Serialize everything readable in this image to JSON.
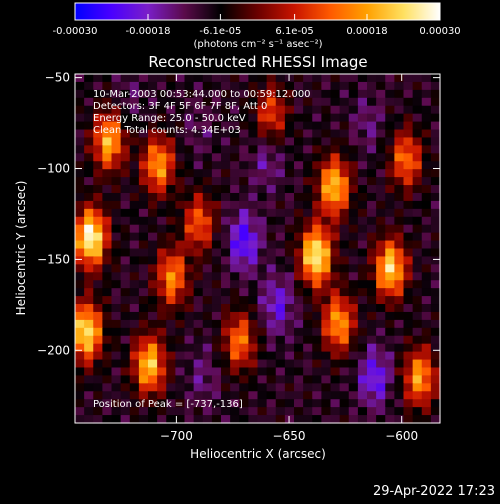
{
  "colorbar": {
    "tick_labels": [
      "-0.00030",
      "-0.00018",
      "-6.1e-05",
      "6.1e-05",
      "0.00018",
      "0.00030"
    ],
    "tick_values": [
      -0.0003,
      -0.00018,
      -6.1e-05,
      6.1e-05,
      0.00018,
      0.0003
    ],
    "range": [
      -0.0003,
      0.0003
    ],
    "unit_label": "(photons cm⁻² s⁻¹ asec⁻²)",
    "colormap": [
      "#0000ff",
      "#4a00ff",
      "#7a1ec8",
      "#5a0a4a",
      "#000000",
      "#6a0000",
      "#c81400",
      "#ff5a00",
      "#ffa000",
      "#ffe060",
      "#ffffff"
    ]
  },
  "annotations": {
    "time": "10-Mar-2003 00:53:44.000 to 00:59:12.000",
    "detectors": "Detectors: 3F 4F 5F 6F 7F 8F, Att 0",
    "energy": "Energy Range: 25.0 - 50.0 keV",
    "clean": "Clean     Total counts: 4.34E+03",
    "peak": "Position of Peak = [-737,-136]"
  },
  "footer_timestamp": "29-Apr-2022 17:23",
  "chart_data": {
    "type": "heatmap",
    "title": "Reconstructed RHESSI Image",
    "xlabel": "Heliocentric X (arcsec)",
    "ylabel": "Heliocentric Y (arcsec)",
    "xlim": [
      -745,
      -583
    ],
    "ylim": [
      -240,
      -48
    ],
    "x_ticks": [
      -700,
      -650,
      -600
    ],
    "y_ticks": [
      -50,
      -100,
      -150,
      -200
    ],
    "x_tick_labels": [
      "−700",
      "−650",
      "−600"
    ],
    "y_tick_labels": [
      "−50",
      "−100",
      "−150",
      "−200"
    ],
    "grid": false,
    "value_range": [
      -0.0003,
      0.0003
    ],
    "peak_position": [
      -737,
      -136
    ],
    "bright_regions": [
      {
        "x": -738,
        "y": -138,
        "value": 0.0003
      },
      {
        "x": -740,
        "y": -190,
        "value": 0.00026
      },
      {
        "x": -730,
        "y": -85,
        "value": 0.0002
      },
      {
        "x": -708,
        "y": -98,
        "value": 0.00018
      },
      {
        "x": -712,
        "y": -208,
        "value": 0.00022
      },
      {
        "x": -702,
        "y": -160,
        "value": 0.00016
      },
      {
        "x": -690,
        "y": -130,
        "value": 0.00012
      },
      {
        "x": -672,
        "y": -195,
        "value": 0.00014
      },
      {
        "x": -638,
        "y": -148,
        "value": 0.00028
      },
      {
        "x": -630,
        "y": -110,
        "value": 0.00022
      },
      {
        "x": -628,
        "y": -185,
        "value": 0.00018
      },
      {
        "x": -605,
        "y": -155,
        "value": 0.00024
      },
      {
        "x": -598,
        "y": -95,
        "value": 0.00014
      },
      {
        "x": -592,
        "y": -215,
        "value": 0.00018
      },
      {
        "x": -658,
        "y": -70,
        "value": 0.0001
      }
    ],
    "dim_regions": [
      {
        "x": -670,
        "y": -140,
        "value": -0.00024
      },
      {
        "x": -660,
        "y": -95,
        "value": -0.00016
      },
      {
        "x": -688,
        "y": -215,
        "value": -0.00014
      },
      {
        "x": -612,
        "y": -215,
        "value": -0.00022
      },
      {
        "x": -615,
        "y": -75,
        "value": -0.00014
      },
      {
        "x": -720,
        "y": -60,
        "value": -0.00012
      },
      {
        "x": -655,
        "y": -175,
        "value": -0.0002
      },
      {
        "x": -690,
        "y": -78,
        "value": -0.00012
      }
    ]
  }
}
